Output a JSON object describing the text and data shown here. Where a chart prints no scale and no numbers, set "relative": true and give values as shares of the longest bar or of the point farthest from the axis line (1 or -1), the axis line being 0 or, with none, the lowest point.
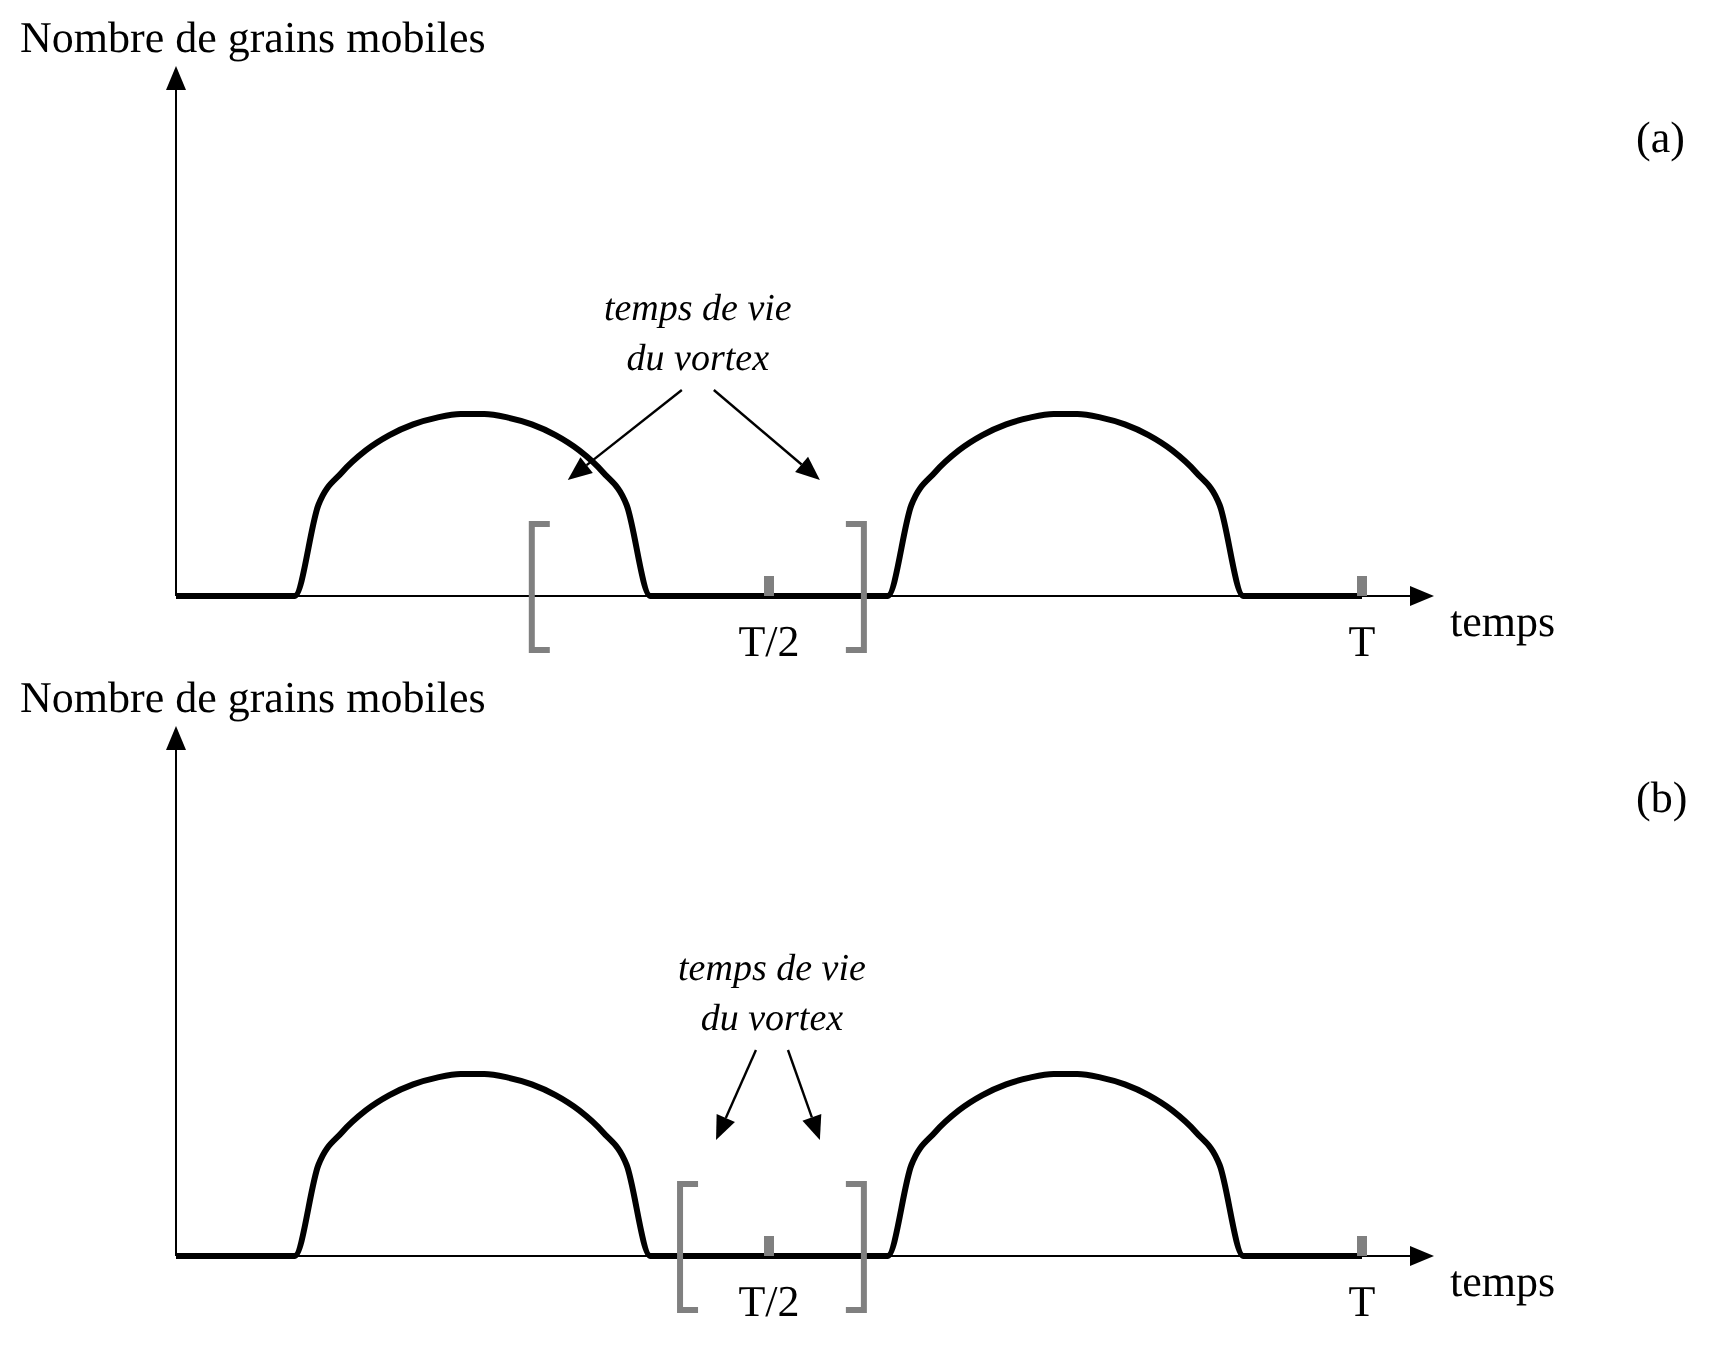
{
  "chart_data": [
    {
      "type": "line",
      "ylabel": "Nombre de grains mobiles",
      "xlabel": "temps",
      "relative": true,
      "marker": "none",
      "line_style": "solid",
      "categories": [
        null,
        null,
        null,
        null,
        null,
        null,
        null,
        null,
        null,
        null,
        null,
        null,
        null,
        null,
        null,
        null,
        null,
        null,
        null,
        null,
        null,
        null,
        null,
        null,
        null,
        "T/2",
        null,
        null,
        null,
        null,
        null,
        null,
        null,
        null,
        null,
        null,
        null,
        null,
        null,
        null,
        null,
        null,
        null,
        null,
        null,
        null,
        null,
        null,
        null,
        null,
        "T"
      ],
      "series": [
        {
          "color": "#000000",
          "values": [
            0,
            0,
            0,
            0,
            0,
            0,
            0.499,
            0.68,
            0.8,
            0.884,
            0.943,
            0.98,
            1,
            1,
            0.98,
            0.943,
            0.884,
            0.8,
            0.68,
            0.499,
            0,
            0,
            0,
            0,
            0,
            0,
            0,
            0,
            0,
            0,
            0,
            0.499,
            0.68,
            0.8,
            0.884,
            0.943,
            0.98,
            1,
            1,
            0.98,
            0.943,
            0.884,
            0.8,
            0.68,
            0.499,
            0,
            0,
            0,
            0,
            0,
            0
          ]
        }
      ],
      "annotations": [
        "temps de vie du vortex",
        "(a)"
      ]
    },
    {
      "type": "line",
      "ylabel": "Nombre de grains mobiles",
      "xlabel": "temps",
      "relative": true,
      "marker": "none",
      "line_style": "solid",
      "categories": [
        null,
        null,
        null,
        null,
        null,
        null,
        null,
        null,
        null,
        null,
        null,
        null,
        null,
        null,
        null,
        null,
        null,
        null,
        null,
        null,
        null,
        null,
        null,
        null,
        null,
        "T/2",
        null,
        null,
        null,
        null,
        null,
        null,
        null,
        null,
        null,
        null,
        null,
        null,
        null,
        null,
        null,
        null,
        null,
        null,
        null,
        null,
        null,
        null,
        null,
        null,
        "T"
      ],
      "series": [
        {
          "color": "#000000",
          "values": [
            0,
            0,
            0,
            0,
            0,
            0,
            0.499,
            0.68,
            0.8,
            0.884,
            0.943,
            0.98,
            1,
            1,
            0.98,
            0.943,
            0.884,
            0.8,
            0.68,
            0.499,
            0,
            0,
            0,
            0,
            0,
            0,
            0,
            0,
            0,
            0,
            0,
            0.499,
            0.68,
            0.8,
            0.884,
            0.943,
            0.98,
            1,
            1,
            0.98,
            0.943,
            0.884,
            0.8,
            0.68,
            0.499,
            0,
            0,
            0,
            0,
            0,
            0
          ]
        }
      ],
      "annotations": [
        "temps de vie du vortex",
        "(b)"
      ]
    }
  ]
}
